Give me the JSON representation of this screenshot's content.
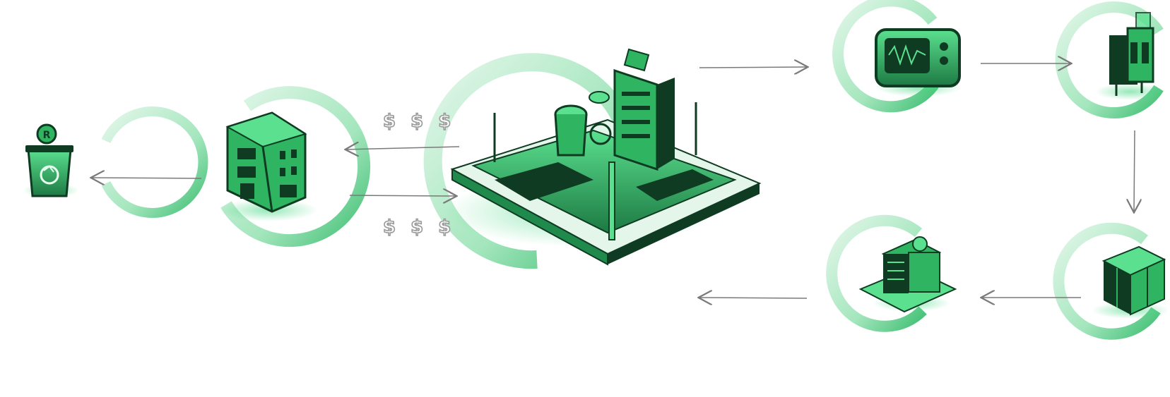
{
  "colors": {
    "ring_light": "#c6efd5",
    "ring_mid": "#7fd9a2",
    "ring_dark": "#3fbf73",
    "icon_dark": "#0f3b22",
    "icon_green": "#2fb461",
    "icon_bright": "#5be08f",
    "arrow": "#7a7a7a"
  },
  "labels": {
    "money_top": "$ $ $",
    "money_bottom": "$ $ $",
    "recycle_badge": "R"
  },
  "nodes": [
    {
      "id": "recycling-bin",
      "icon": "recycle-bin-icon"
    },
    {
      "id": "building",
      "icon": "building-icon"
    },
    {
      "id": "industrial-city",
      "icon": "factory-city-icon"
    },
    {
      "id": "oscilloscope",
      "icon": "oscilloscope-icon"
    },
    {
      "id": "circuit-components",
      "icon": "capacitor-icon"
    },
    {
      "id": "server-rack",
      "icon": "server-icon"
    },
    {
      "id": "data-center",
      "icon": "data-center-icon"
    }
  ]
}
